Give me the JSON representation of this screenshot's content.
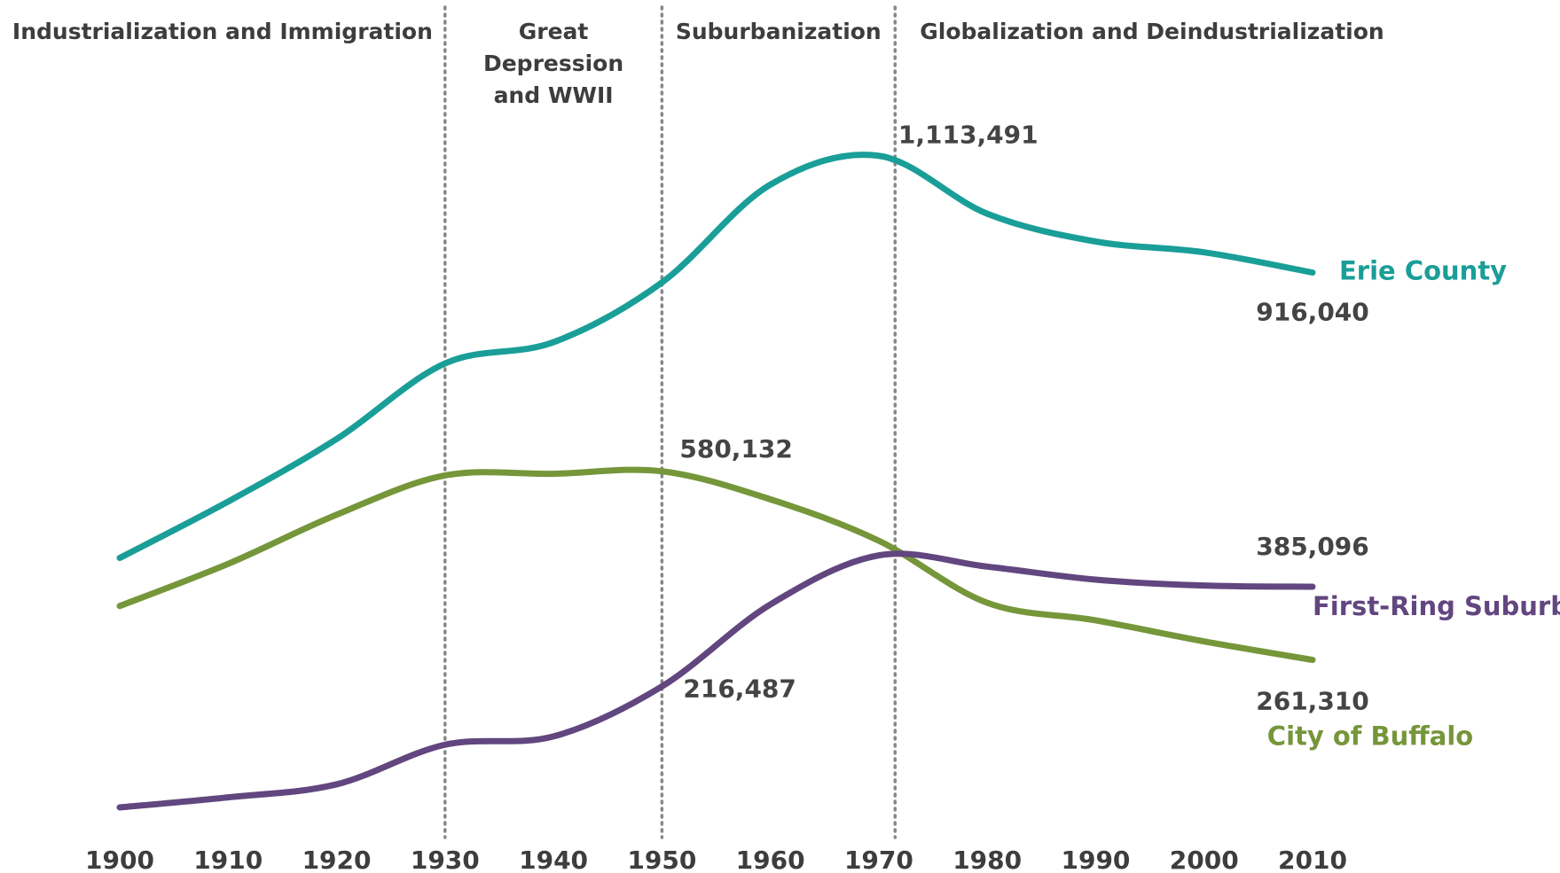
{
  "chart_data": {
    "type": "line",
    "x": [
      1900,
      1910,
      1920,
      1930,
      1940,
      1950,
      1960,
      1970,
      1980,
      1990,
      2000,
      2010
    ],
    "xlim": [
      1900,
      2010
    ],
    "ylim": [
      0,
      1200000
    ],
    "eras": [
      "Industrialization and Immigration",
      "Great Depression and WWII",
      "Suburbanization",
      "Globalization and Deindustrialization"
    ],
    "dividers": [
      1930,
      1950,
      1971.5
    ],
    "series": [
      {
        "name": "Erie County",
        "color": "#1a9e98",
        "values": [
          433686,
          528985,
          634688,
          762408,
          798377,
          899238,
          1064688,
          1113491,
          1015472,
          968532,
          950265,
          916040
        ],
        "value_labels": [
          null,
          null,
          null,
          null,
          null,
          null,
          null,
          "1,113,491",
          null,
          null,
          null,
          "916,040"
        ]
      },
      {
        "name": "City of Buffalo",
        "color": "#76963a",
        "values": [
          352387,
          423715,
          506775,
          573076,
          575901,
          580132,
          532759,
          462768,
          357870,
          328123,
          292648,
          261310
        ],
        "value_labels": [
          null,
          null,
          null,
          null,
          null,
          "580,132",
          null,
          null,
          null,
          null,
          null,
          "261,310"
        ]
      },
      {
        "name": "First-Ring Suburbs",
        "color": "#62467f",
        "values": [
          12000,
          29000,
          51000,
          118000,
          132000,
          216487,
          355000,
          438000,
          419000,
          397000,
          387000,
          385096
        ],
        "value_labels": [
          null,
          null,
          null,
          null,
          null,
          "216,487",
          null,
          null,
          null,
          null,
          null,
          "385,096"
        ]
      }
    ]
  }
}
